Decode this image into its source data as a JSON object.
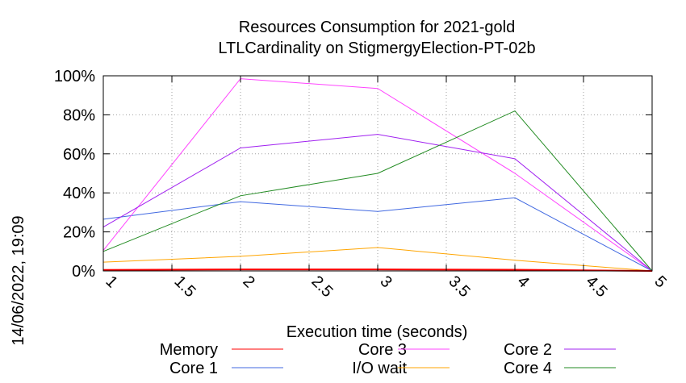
{
  "chart_data": {
    "type": "line",
    "title": "Resources Consumption for 2021-gold",
    "subtitle": "LTLCardinality on StigmergyElection-PT-02b",
    "xlabel": "Execution time (seconds)",
    "ylabel": "",
    "side_label": "14/06/2022, 19:09",
    "xlim": [
      1,
      5
    ],
    "ylim": [
      0,
      100
    ],
    "x_ticks": [
      "1",
      "1.5",
      "2",
      "2.5",
      "3",
      "3.5",
      "4",
      "4.5",
      "5"
    ],
    "y_ticks": [
      "0%",
      "20%",
      "40%",
      "60%",
      "80%",
      "100%"
    ],
    "grid": true,
    "legend_position": "bottom",
    "x": [
      1,
      2,
      3,
      4,
      5
    ],
    "series": [
      {
        "name": "Memory",
        "color": "#ff0000",
        "values": [
          0.5,
          0.8,
          0.8,
          0.6,
          0
        ]
      },
      {
        "name": "Core 1",
        "color": "#4169e1",
        "values": [
          26.5,
          35.5,
          30.5,
          37.5,
          0
        ]
      },
      {
        "name": "Core 3",
        "color": "#ff44ff",
        "values": [
          10.5,
          98.5,
          93.5,
          50,
          0
        ]
      },
      {
        "name": "I/O wait",
        "color": "#ffa500",
        "values": [
          4.5,
          7.5,
          12,
          5.5,
          0
        ]
      },
      {
        "name": "Core 2",
        "color": "#a020f0",
        "values": [
          22.5,
          63,
          70,
          57.5,
          0
        ]
      },
      {
        "name": "Core 4",
        "color": "#228b22",
        "values": [
          10,
          38.5,
          50,
          82,
          0
        ]
      }
    ]
  }
}
